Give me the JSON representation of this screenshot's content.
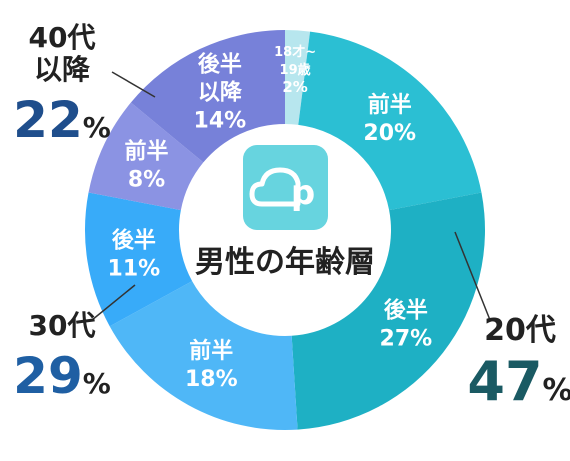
{
  "chart_data": {
    "type": "pie",
    "title": "男性の年齢層",
    "slices": [
      {
        "label_lines": [
          "18才~",
          "19歳"
        ],
        "value": 2,
        "value_label": "2%",
        "color": "#b7e6ee"
      },
      {
        "label_lines": [
          "前半"
        ],
        "value": 20,
        "value_label": "20%",
        "color": "#2bbfd3"
      },
      {
        "label_lines": [
          "後半"
        ],
        "value": 27,
        "value_label": "27%",
        "color": "#1eb0c4"
      },
      {
        "label_lines": [
          "前半"
        ],
        "value": 18,
        "value_label": "18%",
        "color": "#4fb7f7"
      },
      {
        "label_lines": [
          "後半"
        ],
        "value": 11,
        "value_label": "11%",
        "color": "#38abf9"
      },
      {
        "label_lines": [
          "前半"
        ],
        "value": 8,
        "value_label": "8%",
        "color": "#8b93e3"
      },
      {
        "label_lines": [
          "後半",
          "以降"
        ],
        "value": 14,
        "value_label": "14%",
        "color": "#7781d9"
      }
    ],
    "groups": [
      {
        "name_lines": [
          "20代"
        ],
        "value": 47,
        "value_label": "47",
        "color": "#1a5a63"
      },
      {
        "name_lines": [
          "30代"
        ],
        "value": 29,
        "value_label": "29",
        "color": "#1f5fa3"
      },
      {
        "name_lines": [
          "40代",
          "以降"
        ],
        "value": 22,
        "value_label": "22",
        "color": "#1f4e8c"
      }
    ],
    "percent_sign": "%"
  },
  "logo": {
    "name": "pairs-app-icon",
    "letter": "p",
    "color": "#67d4df"
  }
}
